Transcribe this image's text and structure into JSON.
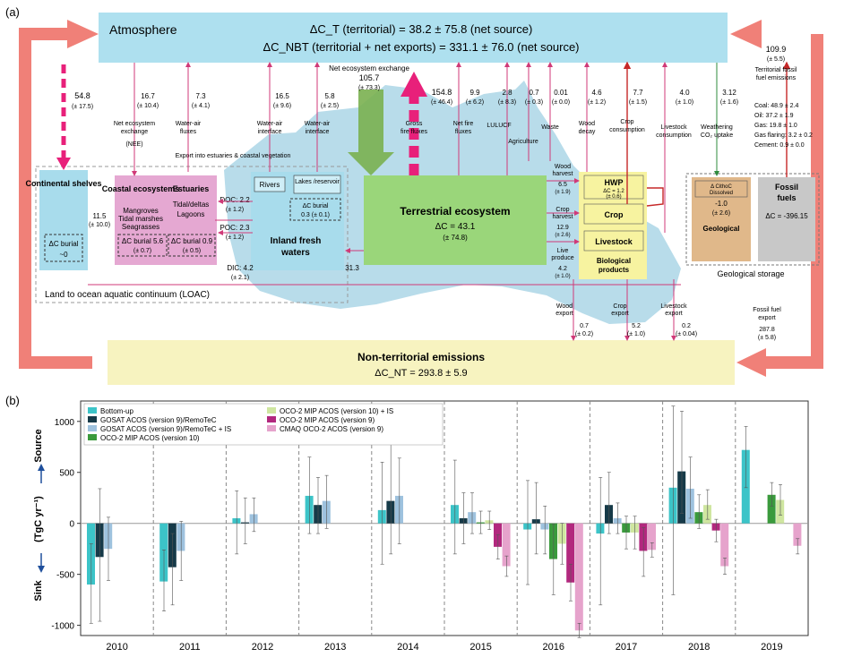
{
  "panel_a": {
    "label": "(a)",
    "atmosphere": {
      "title": "Atmosphere",
      "dct_line": "ΔC_T (territorial) = 38.2 ± 75.8 (net source)",
      "dcnbt_line": "ΔC_NBT (territorial + net exports) = 331.1 ± 76.0 (net source)"
    },
    "nee_top": {
      "label": "Net ecosystem exchange",
      "value": "105.7",
      "unc": "(± 73.3)"
    },
    "flux_labels": {
      "nee_loac": [
        "16.7",
        "(± 10.4)",
        "Net ecosystem",
        "exchange",
        "(NEE)"
      ],
      "waterair_coastal": [
        "7.3",
        "(± 4.1)",
        "Water-air",
        "fluxes"
      ],
      "shelves": [
        "54.8",
        "(± 17.5)"
      ],
      "waterair_rivers": [
        "16.5",
        "(± 9.6)",
        "Water-air",
        "interface"
      ],
      "waterair_lakes": [
        "5.8",
        "(± 2.5)",
        "Water-air",
        "interface"
      ],
      "gross_fire": [
        "154.8",
        "(± 46.4)",
        "Gross",
        "fire fluxes"
      ],
      "net_fire": [
        "9.9",
        "(± 6.2)",
        "Net fire",
        "fluxes"
      ],
      "lulucf": [
        "2.8",
        "(± 8.3)",
        "LULUCF"
      ],
      "agriculture": [
        "0.7",
        "(± 0.3)",
        "Agriculture"
      ],
      "waste": [
        "0.01",
        "(± 0.0)",
        "Waste"
      ],
      "wood_decay": [
        "4.6",
        "(± 1.2)",
        "Wood",
        "decay"
      ],
      "crop_consumption": [
        "7.7",
        "(± 1.5)",
        "Crop",
        "consumption"
      ],
      "livestock_consumption": [
        "4.0",
        "(± 1.0)",
        "Livestock",
        "consumption"
      ],
      "weathering": [
        "3.12",
        "(± 1.6)",
        "Weathering",
        "CO₂ uptake"
      ]
    },
    "fossil_emissions": {
      "value": "109.9",
      "unc": "(± 5.5)",
      "label": "Territorial fossil",
      "label2": "fuel emissions",
      "breakdown": [
        "Coal: 48.9 ± 2.4",
        "Oil: 37.2 ± 1.9",
        "Gas: 19.8 ± 1.0",
        "Gas flaring: 3.2 ± 0.2",
        "Cement: 0.9 ± 0.0"
      ]
    },
    "loac": {
      "title": "Land to ocean aquatic continuum (LOAC)",
      "shelves_title": "Continental shelves",
      "shelves_burial": "ΔC burial",
      "shelves_burial_val": "~0",
      "shelves_flux": "11.5",
      "shelves_flux_unc": "(± 10.0)",
      "coastal_title": "Coastal ecosystems",
      "coastal_items": [
        "Mangroves",
        "Tidal marshes",
        "Seagrasses"
      ],
      "coastal_burial": "ΔC burial 5.6",
      "coastal_burial_unc": "(± 0.7)",
      "estuaries_title": "Estuaries",
      "estuaries_items": [
        "Tidal/deltas",
        "Lagoons"
      ],
      "estuaries_burial": "ΔC burial 0.9",
      "estuaries_burial_unc": "(± 0.5)",
      "export_label": "Export into estuaries & coastal vegetation",
      "rivers": "Rivers",
      "lakes": "Lakes /reservoir",
      "lakes_burial": "ΔC burial",
      "lakes_burial_val": "0.3 (± 0.1)",
      "doc": [
        "DOC: 2.2",
        "(± 1.2)"
      ],
      "poc": [
        "POC: 2.3",
        "(± 1.2)"
      ],
      "dic": [
        "DIC: 4.2",
        "(± 2.1)"
      ],
      "inland_title": "Inland fresh",
      "inland_title2": "waters",
      "inland_flux": [
        "31.3",
        "(± 10.3)"
      ]
    },
    "terrestrial": {
      "title": "Terrestrial ecosystem",
      "dc": "ΔC = 43.1",
      "unc": "(± 74.8)"
    },
    "harvest": {
      "wood": [
        "Wood",
        "harvest",
        "6.5",
        "(± 1.9)"
      ],
      "crop": [
        "Crop",
        "harvest",
        "12.9",
        "(± 2.6)"
      ],
      "live": [
        "Live",
        "produce",
        "4.2",
        "(± 1.0)"
      ]
    },
    "bio": {
      "hwp": "HWP",
      "hwp_dc": "ΔC = 1.2",
      "hwp_unc": "(± 0.6)",
      "crop": "Crop",
      "livestock": "Livestock",
      "title": "Biological",
      "title2": "products"
    },
    "geo": {
      "dissolved_title": "Δ CithoC",
      "dissolved_sub": "Dissolved",
      "dissolved_val": "-1.0",
      "dissolved_unc": "(± 2.6)",
      "geological": "Geological",
      "fossil_title": "Fossil",
      "fossil_title2": "fuels",
      "fossil_dc": "ΔC = -396.15",
      "storage": "Geological storage"
    },
    "exports": {
      "wood": [
        "Wood",
        "export",
        "0.7",
        "(± 0.2)"
      ],
      "crop": [
        "Crop",
        "export",
        "5.2",
        "(± 1.0)"
      ],
      "livestock": [
        "Livestock",
        "export",
        "0.2",
        "(± 0.04)"
      ],
      "fossil": [
        "Fossil fuel",
        "export",
        "287.8",
        "(± 5.8)"
      ]
    },
    "non_territorial": {
      "title": "Non-territorial emissions",
      "value": "ΔC_NT = 293.8 ± 5.9"
    }
  },
  "chart_data": {
    "type": "bar",
    "panel_label": "(b)",
    "ylabel": "(TgC yr⁻¹)",
    "source_label": "Source",
    "sink_label": "Sink",
    "ylim": [
      -1100,
      1200
    ],
    "yticks": [
      -1000,
      -500,
      0,
      500,
      1000
    ],
    "categories": [
      "2010",
      "2011",
      "2012",
      "2013",
      "2014",
      "2015",
      "2016",
      "2017",
      "2018",
      "2019"
    ],
    "series": [
      {
        "name": "Bottom-up",
        "color": "#3cc4c8",
        "values": [
          -600,
          -570,
          50,
          270,
          130,
          180,
          -60,
          -100,
          350,
          720
        ],
        "err": [
          [
            -980,
            -200
          ],
          [
            -860,
            -260
          ],
          [
            -300,
            320
          ],
          [
            -100,
            650
          ],
          [
            -400,
            600
          ],
          [
            -300,
            620
          ],
          [
            -600,
            420
          ],
          [
            -800,
            450
          ],
          [
            -700,
            1150
          ],
          [
            350,
            950
          ]
        ]
      },
      {
        "name": "GOSAT ACOS (version 9)/RemoTeC",
        "color": "#163a48",
        "values": [
          -330,
          -430,
          10,
          180,
          220,
          50,
          40,
          180,
          510,
          null
        ],
        "err": [
          [
            -960,
            340
          ],
          [
            -800,
            -100
          ],
          [
            -200,
            250
          ],
          [
            -100,
            450
          ],
          [
            -300,
            800
          ],
          [
            -200,
            300
          ],
          [
            -300,
            400
          ],
          [
            -100,
            500
          ],
          [
            100,
            1100
          ],
          null
        ]
      },
      {
        "name": "GOSAT ACOS (version 9)/RemoTeC + IS",
        "color": "#9ec2de",
        "values": [
          -250,
          -270,
          90,
          220,
          270,
          110,
          -60,
          50,
          340,
          null
        ],
        "err": [
          [
            -560,
            60
          ],
          [
            -560,
            20
          ],
          [
            -80,
            250
          ],
          [
            -50,
            470
          ],
          [
            -200,
            640
          ],
          [
            -100,
            300
          ],
          [
            -300,
            170
          ],
          [
            -100,
            200
          ],
          [
            50,
            650
          ],
          null
        ]
      },
      {
        "name": "OCO-2 MIP ACOS (version 10)",
        "color": "#3a9a3c",
        "values": [
          null,
          null,
          null,
          null,
          null,
          10,
          -350,
          -90,
          110,
          280
        ],
        "err": [
          null,
          null,
          null,
          null,
          null,
          [
            -100,
            120
          ],
          [
            -700,
            -10
          ],
          [
            -250,
            70
          ],
          [
            -50,
            280
          ],
          [
            170,
            400
          ]
        ]
      },
      {
        "name": "OCO-2 MIP ACOS (version 10) + IS",
        "color": "#cfe6a0",
        "values": [
          null,
          null,
          null,
          null,
          null,
          30,
          -200,
          -90,
          180,
          230
        ],
        "err": [
          null,
          null,
          null,
          null,
          null,
          [
            -60,
            120
          ],
          [
            -400,
            0
          ],
          [
            -250,
            70
          ],
          [
            40,
            330
          ],
          [
            80,
            380
          ]
        ]
      },
      {
        "name": "OCO-2 MIP ACOS (version 9)",
        "color": "#b2287e",
        "values": [
          null,
          null,
          null,
          null,
          null,
          -230,
          -580,
          -270,
          -70,
          null
        ],
        "err": [
          null,
          null,
          null,
          null,
          null,
          [
            -350,
            -110
          ],
          [
            -760,
            -400
          ],
          [
            -520,
            -40
          ],
          [
            -180,
            40
          ],
          null
        ]
      },
      {
        "name": "CMAQ OCO-2 ACOS (version 9)",
        "color": "#e6a3cc",
        "values": [
          null,
          null,
          null,
          null,
          null,
          -420,
          -1050,
          -260,
          -420,
          -220
        ],
        "err": [
          null,
          null,
          null,
          null,
          null,
          [
            -520,
            -320
          ],
          [
            -1120,
            -980
          ],
          [
            -330,
            -190
          ],
          [
            -500,
            -340
          ],
          [
            -300,
            -150
          ]
        ]
      }
    ]
  }
}
